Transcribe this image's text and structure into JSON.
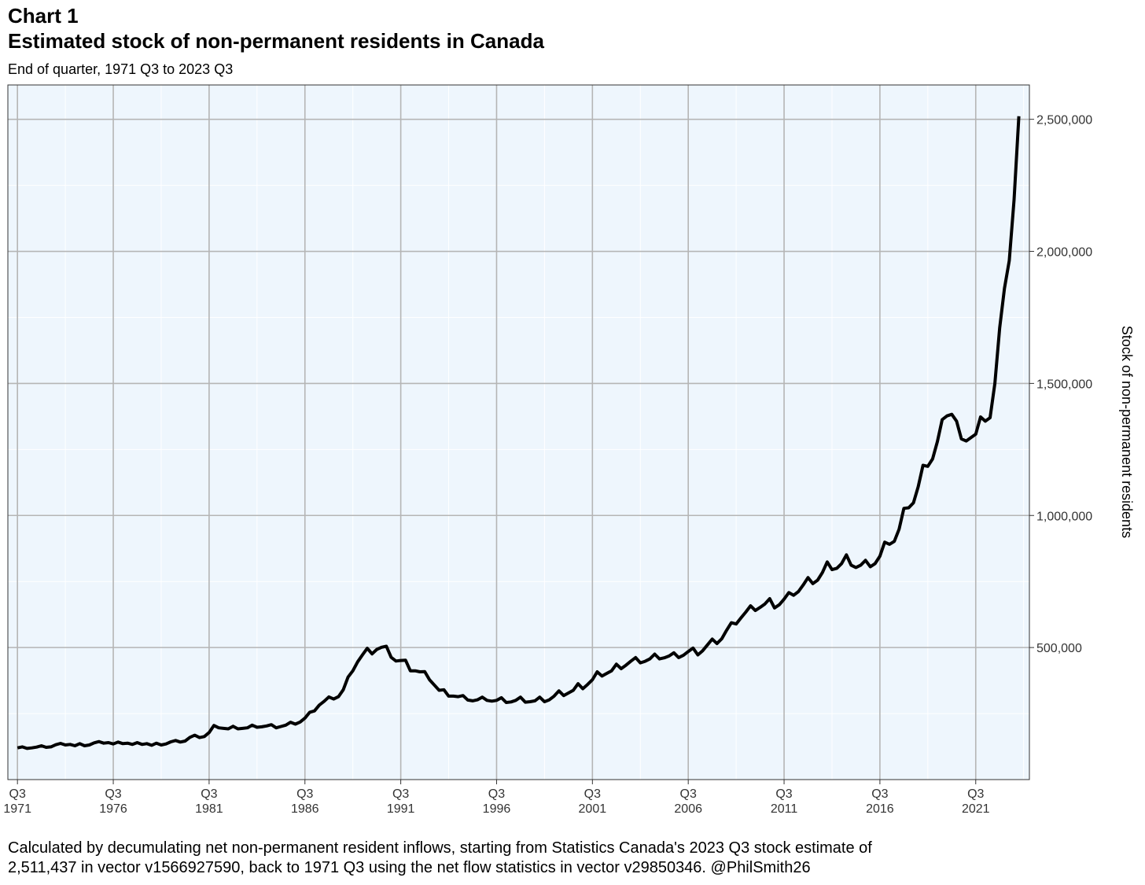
{
  "header": {
    "chart_number": "Chart 1",
    "title": "Estimated stock of non-permanent residents in Canada",
    "subtitle": "End of quarter, 1971 Q3 to 2023 Q3"
  },
  "caption": {
    "line1": "Calculated by decumulating net non-permanent resident inflows, starting from Statistics Canada's 2023 Q3 stock estimate of",
    "line2": "2,511,437 in vector v1566927590, back to 1971 Q3 using the net flow statistics in vector v29850346. @PhilSmith26"
  },
  "colors": {
    "panel_background": "#eef6fd",
    "grid_major": "#b5b5b5",
    "grid_minor": "#ffffff",
    "line": "#000000"
  },
  "chart_data": {
    "type": "line",
    "title": "Estimated stock of non-permanent residents in Canada",
    "subtitle": "End of quarter, 1971 Q3 to 2023 Q3",
    "xlabel": "",
    "ylabel": "Stock of non-permanent residents",
    "y_axis_position": "right",
    "xlim": [
      1971.0,
      2024.3
    ],
    "ylim": [
      0,
      2630000
    ],
    "grid": true,
    "legend": "none",
    "x_ticks": [
      {
        "x": 1971.5,
        "label_top": "Q3",
        "label_bottom": "1971"
      },
      {
        "x": 1976.5,
        "label_top": "Q3",
        "label_bottom": "1976"
      },
      {
        "x": 1981.5,
        "label_top": "Q3",
        "label_bottom": "1981"
      },
      {
        "x": 1986.5,
        "label_top": "Q3",
        "label_bottom": "1986"
      },
      {
        "x": 1991.5,
        "label_top": "Q3",
        "label_bottom": "1991"
      },
      {
        "x": 1996.5,
        "label_top": "Q3",
        "label_bottom": "1996"
      },
      {
        "x": 2001.5,
        "label_top": "Q3",
        "label_bottom": "2001"
      },
      {
        "x": 2006.5,
        "label_top": "Q3",
        "label_bottom": "2006"
      },
      {
        "x": 2011.5,
        "label_top": "Q3",
        "label_bottom": "2011"
      },
      {
        "x": 2016.5,
        "label_top": "Q3",
        "label_bottom": "2016"
      },
      {
        "x": 2021.5,
        "label_top": "Q3",
        "label_bottom": "2021"
      }
    ],
    "y_ticks": [
      {
        "value": 500000,
        "label": "500,000"
      },
      {
        "value": 1000000,
        "label": "1,000,000"
      },
      {
        "value": 1500000,
        "label": "1,500,000"
      },
      {
        "value": 2000000,
        "label": "2,000,000"
      },
      {
        "value": 2500000,
        "label": "2,500,000"
      }
    ],
    "series": [
      {
        "points": [
          [
            1971.5,
            120000
          ],
          [
            1971.75,
            124000
          ],
          [
            1972.0,
            118000
          ],
          [
            1972.25,
            120000
          ],
          [
            1972.5,
            123000
          ],
          [
            1972.75,
            128000
          ],
          [
            1973.0,
            122000
          ],
          [
            1973.25,
            124000
          ],
          [
            1973.5,
            132000
          ],
          [
            1973.75,
            137000
          ],
          [
            1974.0,
            131000
          ],
          [
            1974.25,
            133000
          ],
          [
            1974.5,
            128000
          ],
          [
            1974.75,
            136000
          ],
          [
            1975.0,
            128000
          ],
          [
            1975.25,
            131000
          ],
          [
            1975.5,
            139000
          ],
          [
            1975.75,
            144000
          ],
          [
            1976.0,
            138000
          ],
          [
            1976.25,
            140000
          ],
          [
            1976.5,
            135000
          ],
          [
            1976.75,
            142000
          ],
          [
            1977.0,
            136000
          ],
          [
            1977.25,
            138000
          ],
          [
            1977.5,
            133000
          ],
          [
            1977.75,
            140000
          ],
          [
            1978.0,
            133000
          ],
          [
            1978.25,
            136000
          ],
          [
            1978.5,
            130000
          ],
          [
            1978.75,
            138000
          ],
          [
            1979.0,
            131000
          ],
          [
            1979.25,
            135000
          ],
          [
            1979.5,
            143000
          ],
          [
            1979.75,
            148000
          ],
          [
            1980.0,
            142000
          ],
          [
            1980.25,
            146000
          ],
          [
            1980.5,
            160000
          ],
          [
            1980.75,
            168000
          ],
          [
            1981.0,
            159000
          ],
          [
            1981.25,
            163000
          ],
          [
            1981.5,
            178000
          ],
          [
            1981.75,
            205000
          ],
          [
            1982.0,
            196000
          ],
          [
            1982.25,
            194000
          ],
          [
            1982.5,
            192000
          ],
          [
            1982.75,
            202000
          ],
          [
            1983.0,
            192000
          ],
          [
            1983.25,
            194000
          ],
          [
            1983.5,
            196000
          ],
          [
            1983.75,
            206000
          ],
          [
            1984.0,
            198000
          ],
          [
            1984.25,
            200000
          ],
          [
            1984.5,
            203000
          ],
          [
            1984.75,
            208000
          ],
          [
            1985.0,
            196000
          ],
          [
            1985.25,
            201000
          ],
          [
            1985.5,
            206000
          ],
          [
            1985.75,
            217000
          ],
          [
            1986.0,
            210000
          ],
          [
            1986.25,
            218000
          ],
          [
            1986.5,
            233000
          ],
          [
            1986.75,
            255000
          ],
          [
            1987.0,
            260000
          ],
          [
            1987.25,
            282000
          ],
          [
            1987.5,
            296000
          ],
          [
            1987.75,
            313000
          ],
          [
            1988.0,
            305000
          ],
          [
            1988.25,
            314000
          ],
          [
            1988.5,
            340000
          ],
          [
            1988.75,
            388000
          ],
          [
            1989.0,
            412000
          ],
          [
            1989.25,
            446000
          ],
          [
            1989.5,
            472000
          ],
          [
            1989.75,
            497000
          ],
          [
            1990.0,
            476000
          ],
          [
            1990.25,
            493000
          ],
          [
            1990.5,
            501000
          ],
          [
            1990.75,
            505000
          ],
          [
            1991.0,
            463000
          ],
          [
            1991.25,
            449000
          ],
          [
            1991.5,
            451000
          ],
          [
            1991.75,
            452000
          ],
          [
            1992.0,
            412000
          ],
          [
            1992.25,
            412000
          ],
          [
            1992.5,
            408000
          ],
          [
            1992.75,
            409000
          ],
          [
            1993.0,
            378000
          ],
          [
            1993.25,
            358000
          ],
          [
            1993.5,
            338000
          ],
          [
            1993.75,
            340000
          ],
          [
            1994.0,
            316000
          ],
          [
            1994.25,
            316000
          ],
          [
            1994.5,
            314000
          ],
          [
            1994.75,
            318000
          ],
          [
            1995.0,
            301000
          ],
          [
            1995.25,
            298000
          ],
          [
            1995.5,
            302000
          ],
          [
            1995.75,
            312000
          ],
          [
            1996.0,
            300000
          ],
          [
            1996.25,
            297000
          ],
          [
            1996.5,
            300000
          ],
          [
            1996.75,
            310000
          ],
          [
            1997.0,
            292000
          ],
          [
            1997.25,
            294000
          ],
          [
            1997.5,
            300000
          ],
          [
            1997.75,
            312000
          ],
          [
            1998.0,
            293000
          ],
          [
            1998.25,
            295000
          ],
          [
            1998.5,
            298000
          ],
          [
            1998.75,
            312000
          ],
          [
            1999.0,
            295000
          ],
          [
            1999.25,
            302000
          ],
          [
            1999.5,
            316000
          ],
          [
            1999.75,
            336000
          ],
          [
            2000.0,
            318000
          ],
          [
            2000.25,
            328000
          ],
          [
            2000.5,
            338000
          ],
          [
            2000.75,
            363000
          ],
          [
            2001.0,
            344000
          ],
          [
            2001.25,
            360000
          ],
          [
            2001.5,
            378000
          ],
          [
            2001.75,
            408000
          ],
          [
            2002.0,
            392000
          ],
          [
            2002.25,
            402000
          ],
          [
            2002.5,
            412000
          ],
          [
            2002.75,
            437000
          ],
          [
            2003.0,
            420000
          ],
          [
            2003.25,
            433000
          ],
          [
            2003.5,
            448000
          ],
          [
            2003.75,
            462000
          ],
          [
            2004.0,
            442000
          ],
          [
            2004.25,
            448000
          ],
          [
            2004.5,
            457000
          ],
          [
            2004.75,
            475000
          ],
          [
            2005.0,
            457000
          ],
          [
            2005.25,
            461000
          ],
          [
            2005.5,
            468000
          ],
          [
            2005.75,
            480000
          ],
          [
            2006.0,
            462000
          ],
          [
            2006.25,
            471000
          ],
          [
            2006.5,
            485000
          ],
          [
            2006.75,
            498000
          ],
          [
            2007.0,
            472000
          ],
          [
            2007.25,
            488000
          ],
          [
            2007.5,
            510000
          ],
          [
            2007.75,
            532000
          ],
          [
            2008.0,
            515000
          ],
          [
            2008.25,
            533000
          ],
          [
            2008.5,
            565000
          ],
          [
            2008.75,
            594000
          ],
          [
            2009.0,
            589000
          ],
          [
            2009.25,
            612000
          ],
          [
            2009.5,
            634000
          ],
          [
            2009.75,
            658000
          ],
          [
            2010.0,
            640000
          ],
          [
            2010.25,
            652000
          ],
          [
            2010.5,
            665000
          ],
          [
            2010.75,
            685000
          ],
          [
            2011.0,
            650000
          ],
          [
            2011.25,
            662000
          ],
          [
            2011.5,
            683000
          ],
          [
            2011.75,
            708000
          ],
          [
            2012.0,
            698000
          ],
          [
            2012.25,
            712000
          ],
          [
            2012.5,
            737000
          ],
          [
            2012.75,
            765000
          ],
          [
            2013.0,
            742000
          ],
          [
            2013.25,
            755000
          ],
          [
            2013.5,
            784000
          ],
          [
            2013.75,
            824000
          ],
          [
            2014.0,
            795000
          ],
          [
            2014.25,
            800000
          ],
          [
            2014.5,
            818000
          ],
          [
            2014.75,
            851000
          ],
          [
            2015.0,
            812000
          ],
          [
            2015.25,
            803000
          ],
          [
            2015.5,
            812000
          ],
          [
            2015.75,
            830000
          ],
          [
            2016.0,
            806000
          ],
          [
            2016.25,
            818000
          ],
          [
            2016.5,
            846000
          ],
          [
            2016.75,
            899000
          ],
          [
            2017.0,
            891000
          ],
          [
            2017.25,
            902000
          ],
          [
            2017.5,
            948000
          ],
          [
            2017.75,
            1027000
          ],
          [
            2018.0,
            1029000
          ],
          [
            2018.25,
            1048000
          ],
          [
            2018.5,
            1109000
          ],
          [
            2018.75,
            1190000
          ],
          [
            2019.0,
            1186000
          ],
          [
            2019.25,
            1214000
          ],
          [
            2019.5,
            1280000
          ],
          [
            2019.75,
            1363000
          ],
          [
            2020.0,
            1377000
          ],
          [
            2020.25,
            1383000
          ],
          [
            2020.5,
            1357000
          ],
          [
            2020.75,
            1290000
          ],
          [
            2021.0,
            1282000
          ],
          [
            2021.25,
            1295000
          ],
          [
            2021.5,
            1308000
          ],
          [
            2021.75,
            1373000
          ],
          [
            2022.0,
            1357000
          ],
          [
            2022.25,
            1370000
          ],
          [
            2022.5,
            1500000
          ],
          [
            2022.75,
            1710000
          ],
          [
            2023.0,
            1860000
          ],
          [
            2023.25,
            1965000
          ],
          [
            2023.5,
            2195000
          ],
          [
            2023.75,
            2511437
          ]
        ]
      }
    ]
  }
}
